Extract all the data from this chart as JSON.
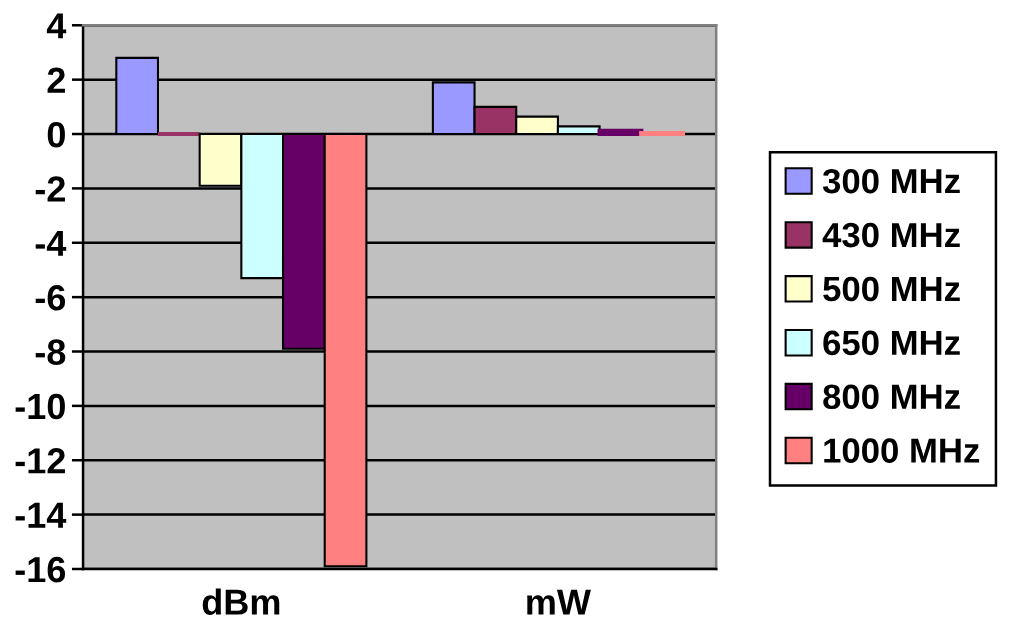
{
  "chart_data": {
    "type": "bar",
    "categories": [
      "dBm",
      "mW"
    ],
    "series": [
      {
        "name": "300 MHz",
        "color": "#9999ff",
        "values": [
          2.8,
          1.9
        ]
      },
      {
        "name": "430 MHz",
        "color": "#993366",
        "values": [
          0,
          1.0
        ]
      },
      {
        "name": "500 MHz",
        "color": "#ffffcc",
        "values": [
          -1.9,
          0.64
        ]
      },
      {
        "name": "650 MHz",
        "color": "#ccffff",
        "values": [
          -5.3,
          0.28
        ]
      },
      {
        "name": "800 MHz",
        "color": "#660066",
        "values": [
          -7.9,
          0.12
        ]
      },
      {
        "name": "1000 MHz",
        "color": "#ff8080",
        "values": [
          -15.9,
          0.03
        ]
      }
    ],
    "ylim": [
      -16,
      4
    ],
    "yticks": [
      -16,
      -14,
      -12,
      -10,
      -8,
      -6,
      -4,
      -2,
      0,
      2,
      4
    ],
    "grid": "y",
    "legend": "right"
  }
}
